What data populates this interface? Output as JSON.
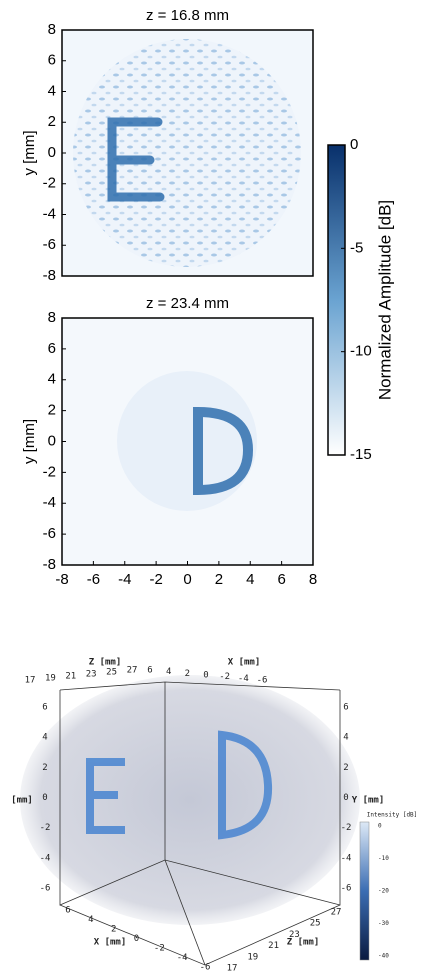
{
  "chart_data": [
    {
      "type": "heatmap",
      "title": "z = 16.8 mm",
      "ylabel": "y [mm]",
      "xlim": [
        -8,
        8
      ],
      "ylim": [
        -8,
        8
      ],
      "yticks": [
        8,
        6,
        4,
        2,
        0,
        -2,
        -4,
        -6,
        -8
      ]
    },
    {
      "type": "heatmap",
      "title": "z = 23.4 mm",
      "ylabel": "y [mm]",
      "xlim": [
        -8,
        8
      ],
      "ylim": [
        -8,
        8
      ],
      "xticks": [
        -8,
        -6,
        -4,
        -2,
        0,
        2,
        4,
        6,
        8
      ],
      "yticks": [
        8,
        6,
        4,
        2,
        0,
        -2,
        -4,
        -6,
        -8
      ]
    }
  ],
  "colorbar": {
    "label": "Normalized Amplitude [dB]",
    "lim": [
      -15,
      0
    ],
    "ticks": [
      0,
      -5,
      -10,
      -15
    ]
  },
  "volume": {
    "z_top": {
      "label": "Z [mm]",
      "ticks": [
        17,
        19,
        21,
        23,
        25,
        27
      ]
    },
    "x_top": {
      "label": "X [mm]",
      "ticks": [
        6,
        4,
        2,
        0,
        -2,
        -4,
        -6
      ]
    },
    "y_left": {
      "label": "[mm]",
      "ticks": [
        6,
        4,
        2,
        0,
        -2,
        -4,
        -6
      ]
    },
    "y_right": {
      "label": "Y [mm]",
      "ticks": [
        6,
        4,
        2,
        0,
        -2,
        -4,
        -6
      ]
    },
    "x_bottom": {
      "label": "X [mm]",
      "ticks": [
        6,
        4,
        2,
        0,
        -2,
        -4,
        -6
      ]
    },
    "z_bottom": {
      "label": "Z [mm]",
      "ticks": [
        17,
        19,
        21,
        23,
        25,
        27
      ]
    },
    "colorbar": {
      "label": "Intensity [dB]",
      "ticks": [
        0,
        -10,
        -20,
        -30,
        -40
      ]
    }
  }
}
